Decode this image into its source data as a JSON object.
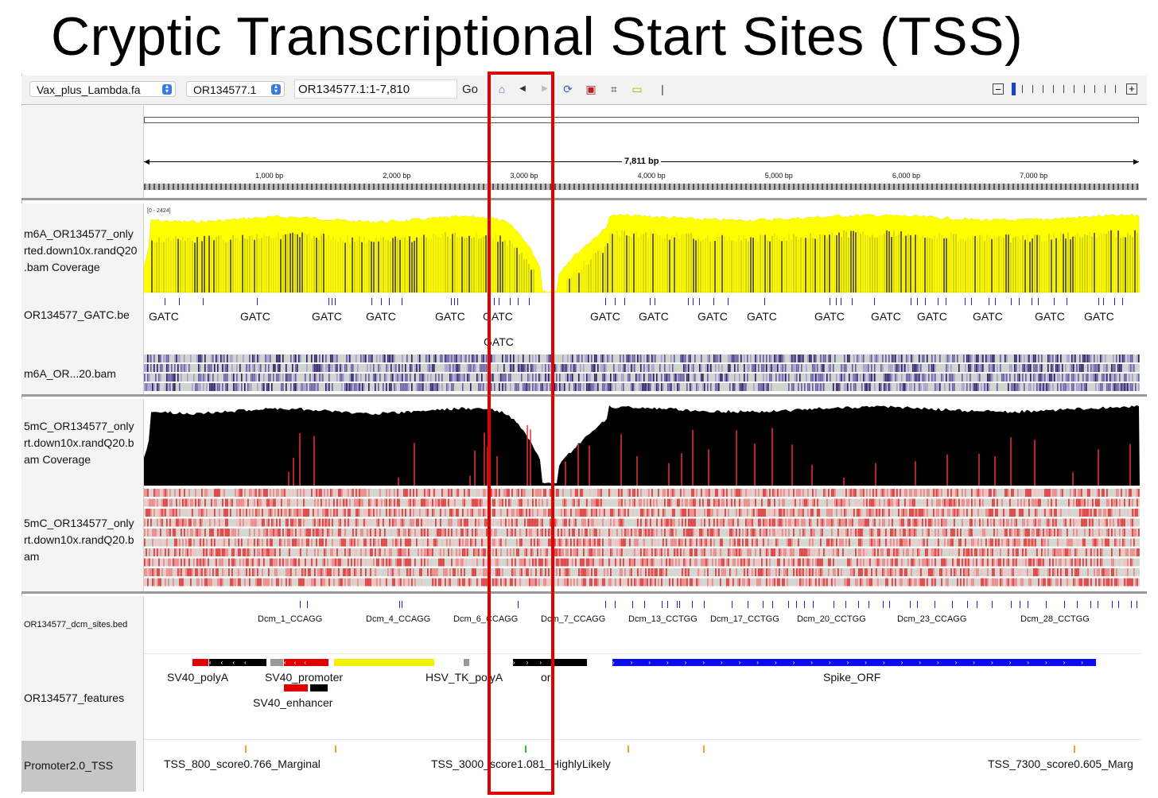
{
  "slide_title": "Cryptic Transcriptional Start Sites (TSS)",
  "toolbar": {
    "genome": "Vax_plus_Lambda.fa",
    "chromosome": "OR134577.1",
    "locus": "OR134577.1:1-7,810",
    "go_label": "Go",
    "icons": [
      "home-icon",
      "back-icon",
      "forward-icon",
      "refresh-icon",
      "roi-icon",
      "resize-icon",
      "popup-text-icon",
      "separator"
    ],
    "zoom_minus": "−",
    "zoom_plus": "+"
  },
  "ruler": {
    "span_label": "7,811 bp",
    "ticks": [
      "1,000 bp",
      "2,000 bp",
      "3,000 bp",
      "4,000 bp",
      "5,000 bp",
      "6,000 bp",
      "7,000 bp"
    ],
    "span": 7811
  },
  "tracks": {
    "m6a_coverage": {
      "name": "m6A_OR134577_only\nrted.down10x.randQ20\n.bam Coverage",
      "range": "[0 - 2424]",
      "color": "#ffff00"
    },
    "gatc_bed": {
      "name": "OR134577_GATC.be",
      "label": "GATC",
      "color": "#2a2acc"
    },
    "m6a_bam": {
      "name": "m6A_OR...20.bam"
    },
    "cpg_coverage": {
      "name": "5mC_OR134577_only\nrt.down10x.randQ20.b\nam Coverage",
      "color": "#000000"
    },
    "cpg_bam": {
      "name": "5mC_OR134577_only\nrt.down10x.randQ20.b\nam",
      "color": "#e53333"
    },
    "dcm_bed": {
      "name": "OR134577_dcm_sites.bed",
      "labels": [
        "Dcm_1_CCAGG",
        "Dcm_4_CCAGG",
        "Dcm_6_CCAGG",
        "Dcm_7_CCAGG",
        "Dcm_13_CCTGG",
        "Dcm_17_CCTGG",
        "Dcm_20_CCTGG",
        "Dcm_23_CCAGG",
        "Dcm_28_CCTGG"
      ]
    },
    "features": {
      "name": "OR134577_features",
      "labels": [
        "SV40_polyA",
        "SV40_promoter",
        "HSV_TK_polyA",
        "ori",
        "Spike_ORF",
        "SV40_enhancer"
      ]
    },
    "promoter_tss": {
      "name": "Promoter2.0_TSS",
      "labels": [
        "TSS_800_score0.766_Marginal",
        "TSS_3000_score1.081_HighlyLikely",
        "TSS_7300_score0.605_Marg"
      ]
    }
  },
  "colors": {
    "highlight": "#e00000",
    "coverage_yellow": "#ffff00",
    "methyl_red": "#e53333",
    "spike_blue": "#0b0bf0",
    "sv40_red": "#e00000",
    "hsv_yellow": "#f2f200"
  }
}
